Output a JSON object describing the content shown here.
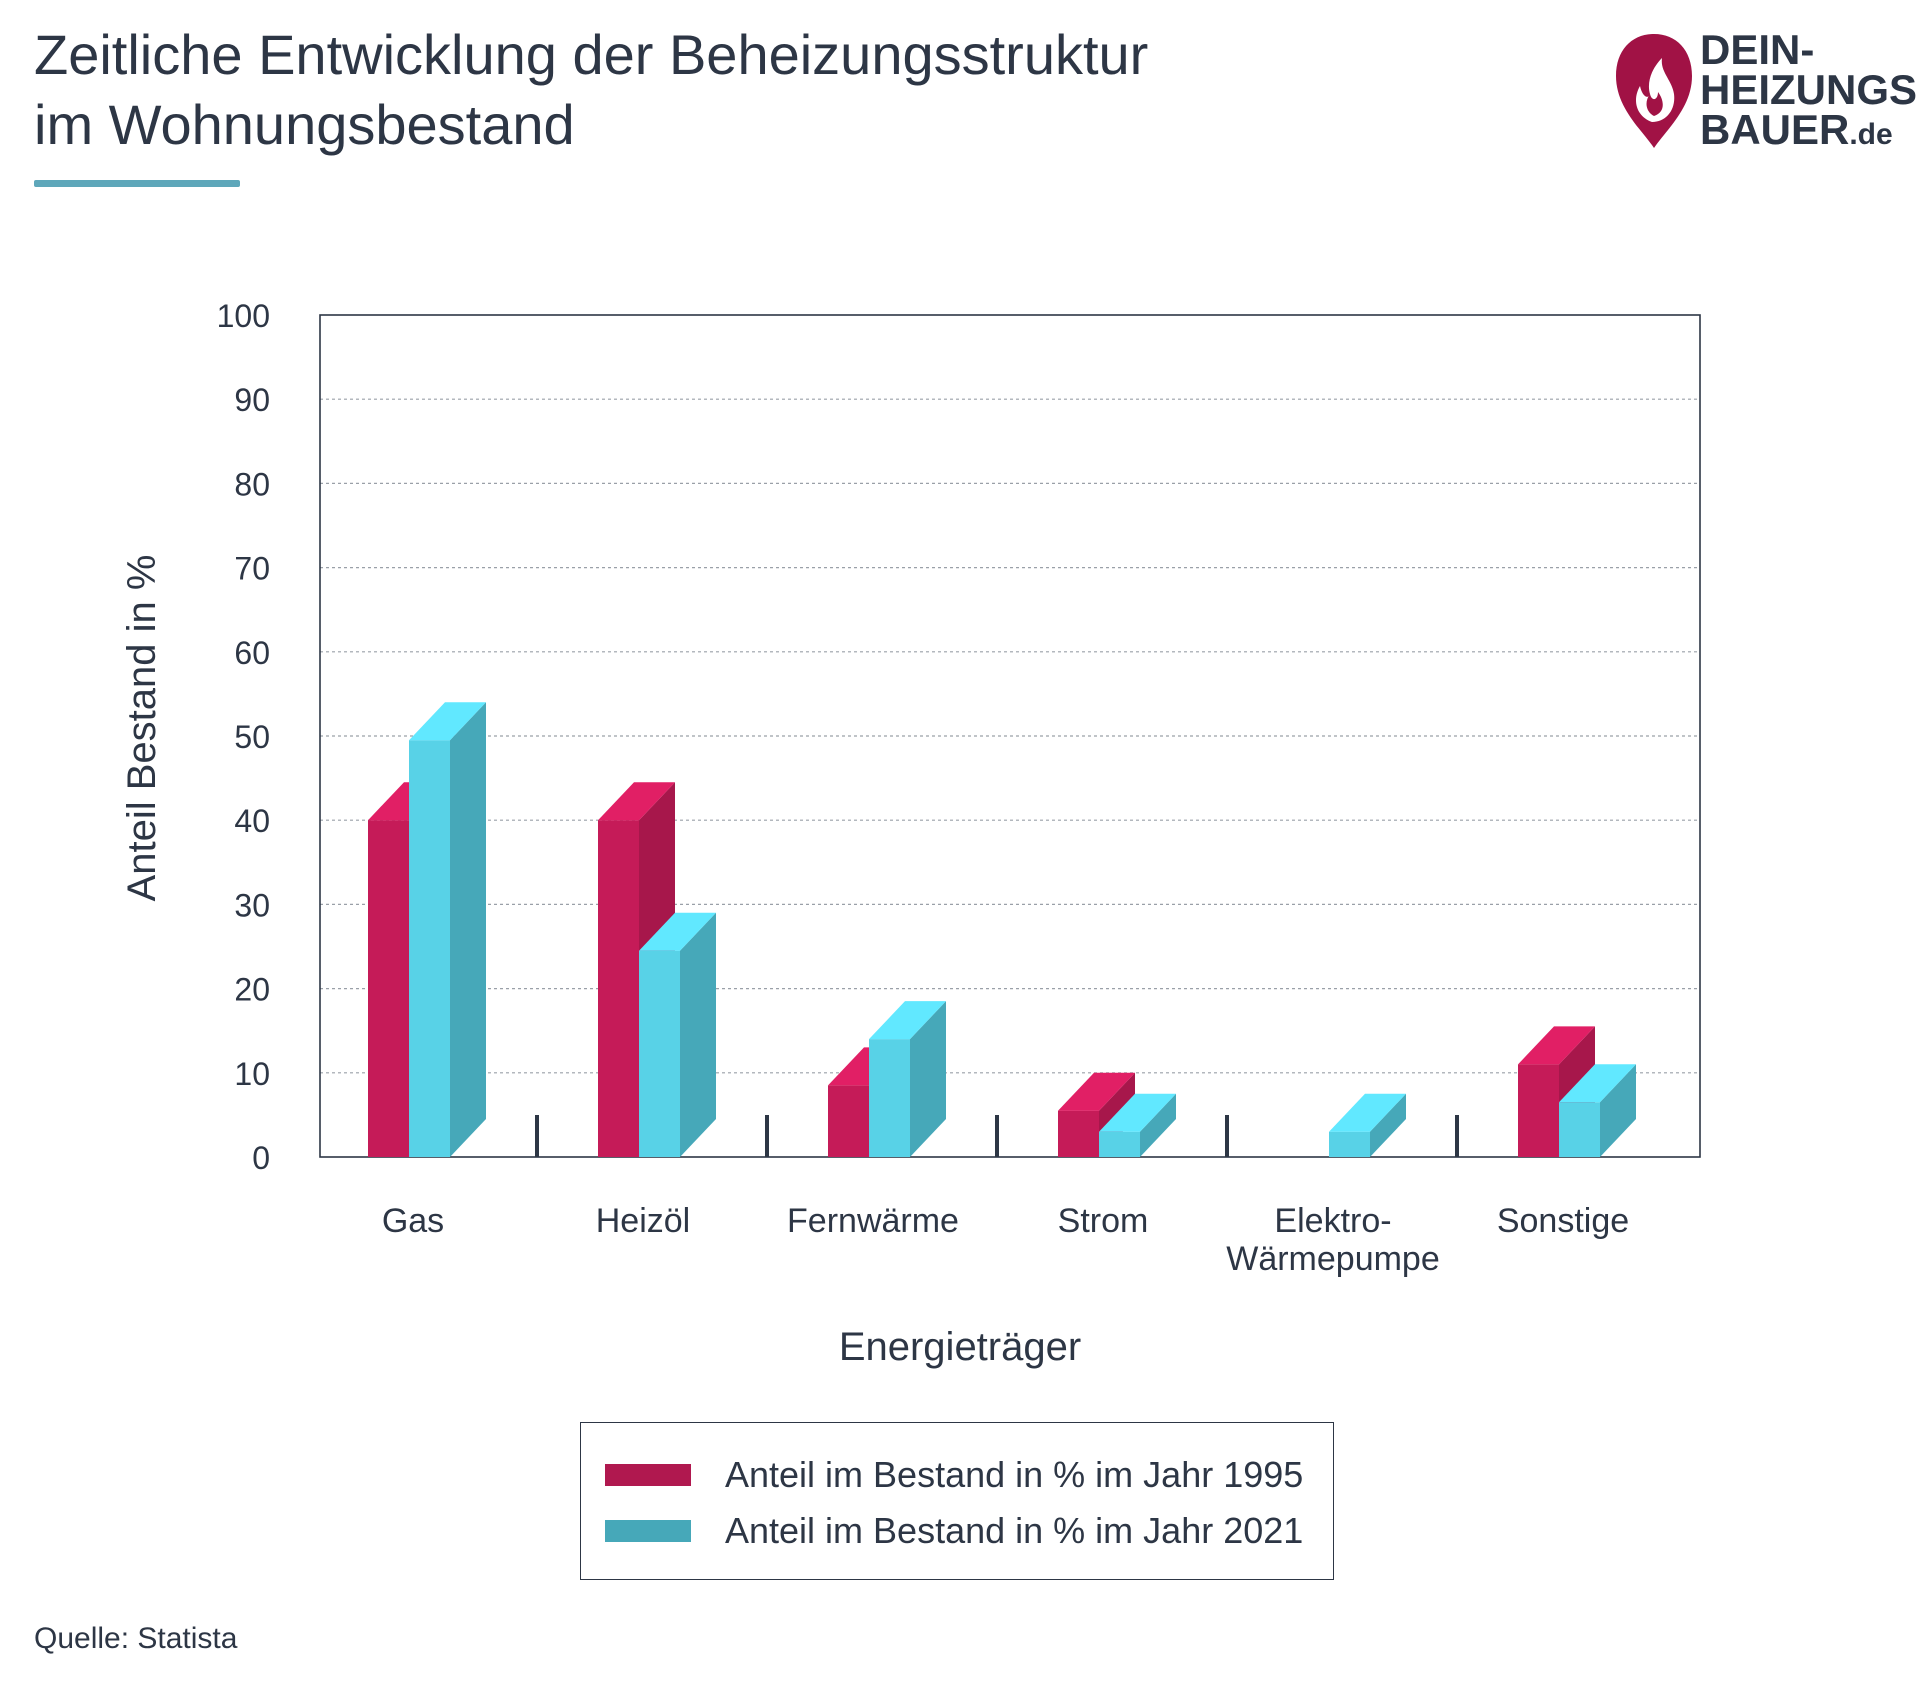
{
  "header": {
    "title_line1": "Zeitliche Entwicklung der Beheizungsstruktur",
    "title_line2": "im Wohnungsbestand"
  },
  "logo": {
    "line1": "DEIN-",
    "line2": "HEIZUNGS",
    "line3": "BAUER",
    "suffix": ".de"
  },
  "colors": {
    "series_1995": "#b0184f",
    "series_2021": "#46a8b9",
    "text": "#2d3645",
    "accent": "#5ea7ba"
  },
  "chart_data": {
    "type": "bar",
    "xlabel": "Energieträger",
    "ylabel": "Anteil Bestand in %",
    "ylim": [
      0,
      100
    ],
    "yticks": [
      "0",
      "10",
      "20",
      "30",
      "40",
      "50",
      "60",
      "70",
      "80",
      "90",
      "100"
    ],
    "categories": [
      "Gas",
      "Heizöl",
      "Fernwärme",
      "Strom",
      "Elektro-\nWärmepumpe",
      "Sonstige"
    ],
    "series": [
      {
        "name": "Anteil im Bestand in % im Jahr 1995",
        "values": [
          40,
          40,
          8.5,
          5.5,
          0,
          11
        ]
      },
      {
        "name": "Anteil im Bestand in % im Jahr 2021",
        "values": [
          49.5,
          24.5,
          14,
          3,
          3,
          6.5
        ]
      }
    ],
    "grid": true,
    "legend_position": "bottom-center"
  },
  "footer": {
    "source": "Quelle: Statista"
  }
}
